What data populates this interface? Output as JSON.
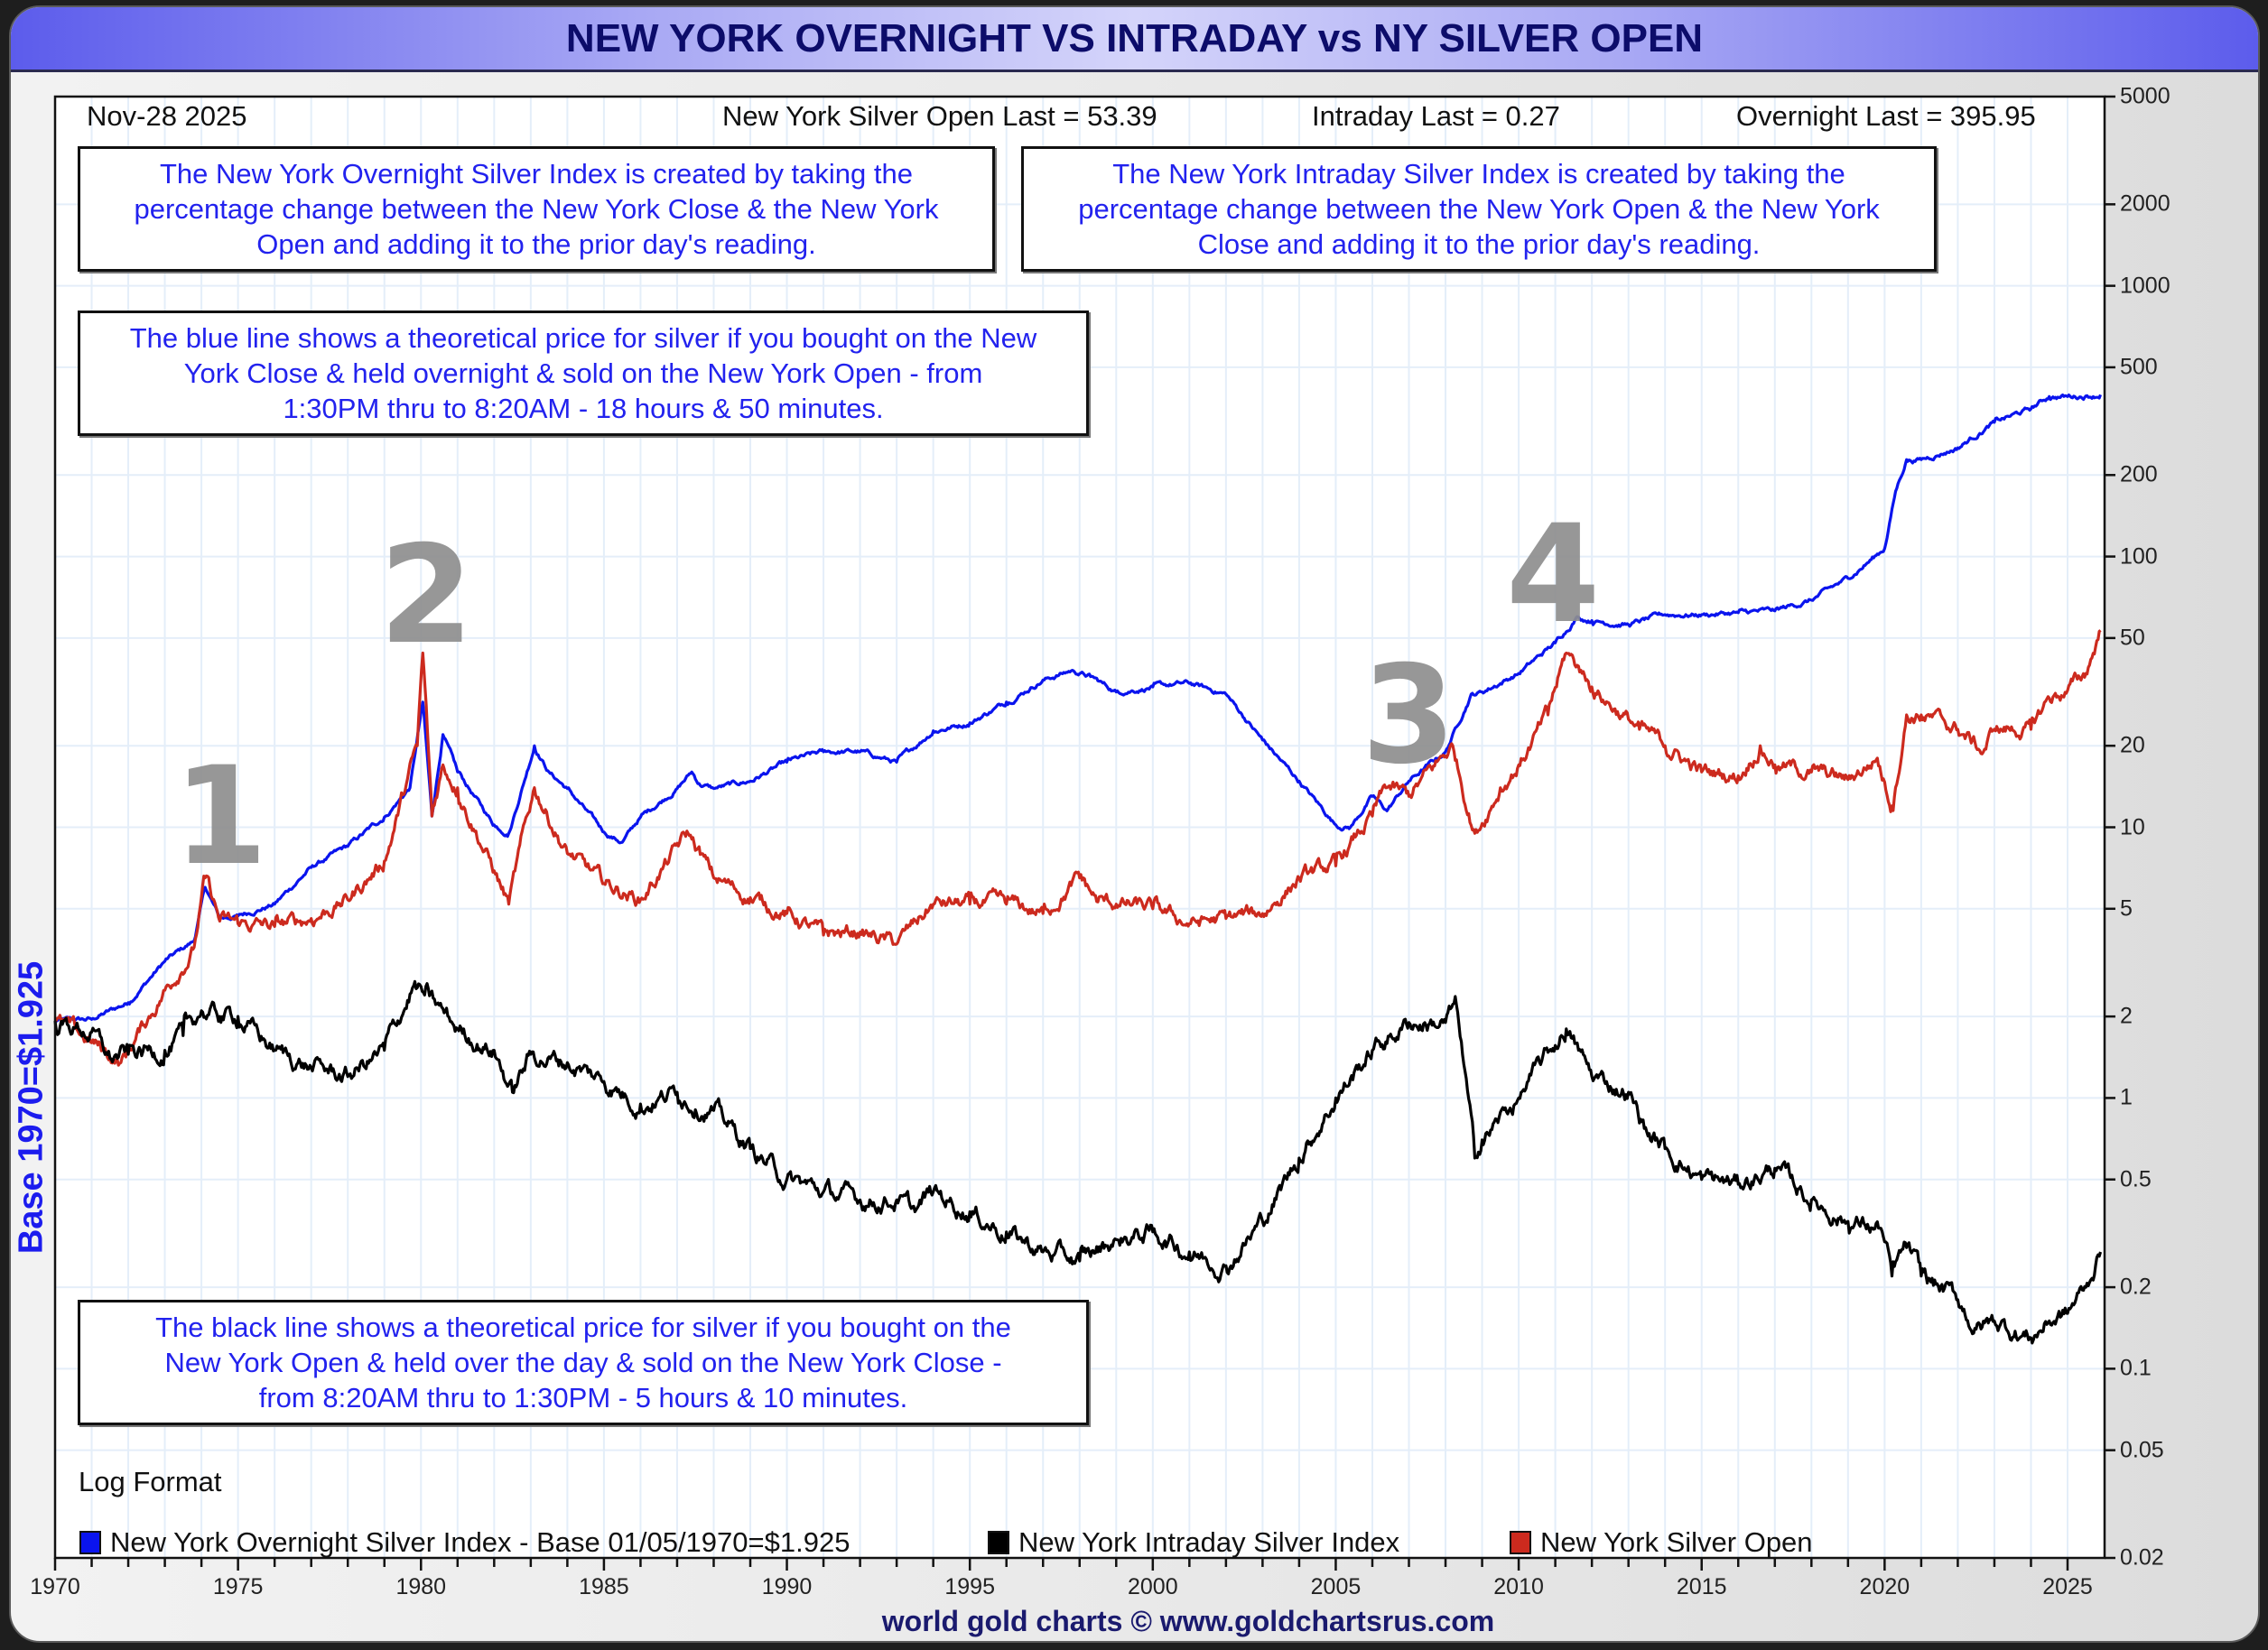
{
  "window": {
    "title": "NEW YORK OVERNIGHT VS INTRADAY vs NY SILVER OPEN",
    "footer": "world gold charts © www.goldchartsrus.com",
    "colors": {
      "title_text": "#0c0c6a",
      "note_text": "#2222ee",
      "blue": "#0a14ee",
      "red": "#cc2a1e",
      "black": "#000000",
      "annotation_gray": "#8f8f8f"
    }
  },
  "header": {
    "date": "Nov-28  2025",
    "open_last": "New York Silver Open Last = 53.39",
    "intraday_last": "Intraday Last = 0.27",
    "overnight_last": "Overnight Last = 395.95"
  },
  "notes": {
    "overnight": [
      "The New York Overnight Silver Index is created by taking the",
      "percentage change between the New York Close & the New York",
      "Open and adding it to the prior day's reading."
    ],
    "intraday": [
      "The New York Intraday Silver Index is created by taking the",
      "percentage change between the New York Open & the New York",
      "Close and adding it to the prior day's reading."
    ],
    "blue_line": [
      "The blue line shows a theoretical price for silver if you bought on the New",
      "York Close & held overnight & sold on the New York Open - from",
      "1:30PM thru to 8:20AM - 18 hours & 50 minutes."
    ],
    "black_line": [
      "The black line shows a theoretical price for silver if you bought on the",
      "New York Open & held over the day & sold on the New York Close -",
      "from 8:20AM thru to 1:30PM - 5 hours & 10 minutes."
    ]
  },
  "annotations": [
    "1",
    "2",
    "3",
    "4"
  ],
  "chart_data": {
    "type": "line",
    "title": "NEW YORK OVERNIGHT VS INTRADAY vs NY SILVER OPEN",
    "ylabel": "Base 1970=$1.925",
    "xlabel": "",
    "scale_note": "Log Format",
    "yscale": "log",
    "xlim": [
      1970,
      2026
    ],
    "ylim": [
      0.02,
      5000
    ],
    "yticks": [
      "5000",
      "2000",
      "1000",
      "500",
      "200",
      "100",
      "50",
      "20",
      "10",
      "5",
      "2",
      "1",
      "0.5",
      "0.2",
      "0.1",
      "0.05",
      "0.02"
    ],
    "xticks": [
      "1970",
      "1975",
      "1980",
      "1985",
      "1990",
      "1995",
      "2000",
      "2005",
      "2010",
      "2015",
      "2020",
      "2025"
    ],
    "grid": true,
    "legend_position": "bottom-left",
    "series": [
      {
        "name": "New York Overnight Silver Index - Base 01/05/1970=$1.925",
        "color": "#0a14ee",
        "x": [
          1970,
          1971,
          1972,
          1973,
          1973.8,
          1974.1,
          1974.5,
          1975,
          1976,
          1977,
          1978,
          1979,
          1979.7,
          1980.05,
          1980.3,
          1980.6,
          1981,
          1982,
          1982.4,
          1983.1,
          1983.5,
          1984,
          1985,
          1985.5,
          1986,
          1987,
          1987.4,
          1987.6,
          1988,
          1989,
          1990,
          1991,
          1992,
          1993,
          1994,
          1995,
          1996,
          1997,
          1997.8,
          1998.3,
          1999,
          2000,
          2001,
          2002,
          2003,
          2004,
          2005,
          2005.4,
          2006,
          2006.4,
          2007,
          2008,
          2008.7,
          2009,
          2010,
          2011,
          2011.6,
          2012,
          2013,
          2014,
          2015,
          2016,
          2017,
          2018,
          2019,
          2020,
          2020.3,
          2020.6,
          2021,
          2022,
          2023,
          2024,
          2024.5,
          2025,
          2025.9
        ],
        "values": [
          1.925,
          1.95,
          2.25,
          3.2,
          3.8,
          6.0,
          4.6,
          4.7,
          5.2,
          7.1,
          8.5,
          10.9,
          14,
          29,
          11,
          22,
          16,
          10.2,
          9.5,
          20,
          16,
          13.9,
          9.6,
          8.8,
          10.9,
          13.9,
          16,
          14.5,
          13.9,
          14.8,
          17.4,
          19,
          19,
          17.4,
          22.7,
          24.3,
          29,
          35,
          38,
          36,
          31.6,
          33,
          34,
          31,
          21,
          14.8,
          10.2,
          10,
          13,
          11.5,
          14.8,
          19,
          31,
          31.6,
          37,
          48,
          60,
          58,
          56,
          61,
          61,
          62,
          63,
          69,
          83,
          107,
          174,
          228,
          228,
          252,
          313,
          351,
          390,
          390,
          395.95
        ]
      },
      {
        "name": "New York Intraday Silver Index",
        "color": "#000000",
        "x": [
          1970,
          1971,
          1971.5,
          1972,
          1973,
          1973.5,
          1974,
          1974.5,
          1975,
          1976,
          1977,
          1978,
          1979,
          1979.8,
          1980.1,
          1981,
          1982,
          1982.5,
          1983,
          1984,
          1985,
          1986,
          1987,
          1988,
          1989,
          1990,
          1991,
          1992,
          1993,
          1993.5,
          1994,
          1995,
          1996,
          1997,
          1998,
          1999,
          2000,
          2001,
          2002,
          2003,
          2004,
          2005,
          2006,
          2007,
          2008,
          2008.3,
          2008.8,
          2009,
          2010,
          2011.3,
          2012,
          2013,
          2013.5,
          2014,
          2015,
          2016,
          2017,
          2018,
          2019,
          2019.9,
          2020.2,
          2020.6,
          2021,
          2022,
          2022.5,
          2023,
          2024,
          2024.5,
          2025,
          2025.5,
          2025.9
        ],
        "values": [
          1.925,
          1.75,
          1.4,
          1.45,
          1.5,
          1.7,
          2.1,
          2.0,
          2.0,
          1.5,
          1.3,
          1.2,
          1.5,
          2.6,
          2.4,
          1.8,
          1.5,
          1.05,
          1.45,
          1.35,
          1.15,
          0.95,
          1.05,
          0.9,
          0.65,
          0.5,
          0.45,
          0.42,
          0.42,
          0.38,
          0.45,
          0.38,
          0.32,
          0.27,
          0.25,
          0.3,
          0.32,
          0.27,
          0.24,
          0.35,
          0.6,
          1.0,
          1.5,
          1.9,
          1.9,
          2.2,
          0.6,
          0.7,
          1.0,
          1.8,
          1.2,
          1.05,
          0.75,
          0.65,
          0.5,
          0.48,
          0.55,
          0.42,
          0.35,
          0.33,
          0.22,
          0.28,
          0.22,
          0.18,
          0.14,
          0.15,
          0.13,
          0.15,
          0.16,
          0.2,
          0.27
        ]
      },
      {
        "name": "New York Silver Open",
        "color": "#cc2a1e",
        "x": [
          1970,
          1971,
          1971.8,
          1973,
          1973.8,
          1974.1,
          1974.5,
          1975,
          1976,
          1977,
          1978,
          1979,
          1979.9,
          1980.05,
          1980.3,
          1980.6,
          1981,
          1982.4,
          1983.1,
          1984,
          1985,
          1986,
          1987.3,
          1988,
          1989,
          1990,
          1991,
          1992,
          1993,
          1994,
          1995,
          1996,
          1997,
          1998,
          1998.5,
          1999,
          2000,
          2001,
          2002,
          2003,
          2004,
          2005,
          2006,
          2006.4,
          2007,
          2008.2,
          2008.8,
          2009.5,
          2010,
          2010.8,
          2011.3,
          2011.7,
          2012,
          2013.3,
          2014,
          2015,
          2016,
          2016.6,
          2017,
          2018,
          2019,
          2019.8,
          2020.2,
          2020.6,
          2021,
          2022,
          2022.7,
          2023,
          2024,
          2024.5,
          2025,
          2025.5,
          2025.9
        ],
        "values": [
          1.925,
          1.6,
          1.35,
          2.5,
          3.6,
          6.5,
          4.5,
          4.4,
          4.3,
          4.6,
          5.4,
          7.5,
          20,
          44,
          11,
          17,
          14,
          5.2,
          14,
          8,
          6.2,
          5.4,
          9.5,
          6.5,
          5.5,
          4.8,
          4.0,
          4.1,
          3.7,
          5.2,
          5.2,
          5.2,
          4.8,
          6.5,
          5.3,
          5.2,
          5.0,
          4.4,
          4.6,
          4.8,
          6.5,
          7.2,
          11,
          14,
          13,
          20,
          9.5,
          14,
          17,
          26,
          44,
          38,
          33,
          23,
          20,
          16,
          15.5,
          20,
          17,
          16,
          15,
          18,
          12,
          26,
          26,
          23,
          19,
          23,
          23,
          30,
          32,
          37,
          53.39
        ]
      }
    ]
  }
}
